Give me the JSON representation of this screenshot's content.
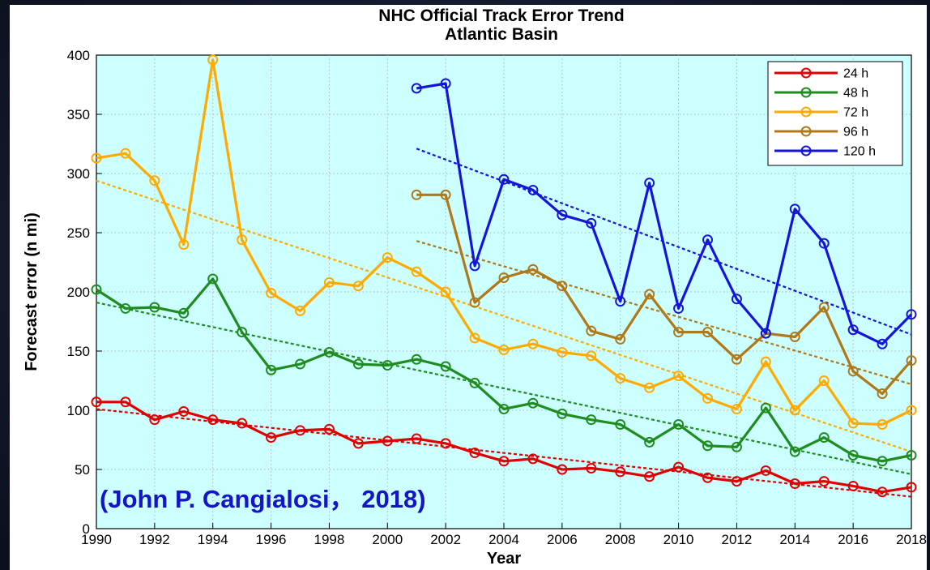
{
  "chart_data": {
    "type": "line",
    "title": "NHC Official Track Error Trend",
    "subtitle": "Atlantic Basin",
    "xlabel": "Year",
    "ylabel": "Forecast error (n mi)",
    "xlim": [
      1990,
      2018
    ],
    "ylim": [
      0,
      400
    ],
    "xticks": [
      1990,
      1992,
      1994,
      1996,
      1998,
      2000,
      2002,
      2004,
      2006,
      2008,
      2010,
      2012,
      2014,
      2016,
      2018
    ],
    "yticks": [
      0,
      50,
      100,
      150,
      200,
      250,
      300,
      350,
      400
    ],
    "grid": "on",
    "legend_position": "top-right",
    "background_color": "#ccffff",
    "annotation": "(John P. Cangialosi， 2018)",
    "annotation_color": "#1515c8",
    "series": [
      {
        "name": "24 h",
        "color": "#e00000",
        "x": [
          1990,
          1991,
          1992,
          1993,
          1994,
          1995,
          1996,
          1997,
          1998,
          1999,
          2000,
          2001,
          2002,
          2003,
          2004,
          2005,
          2006,
          2007,
          2008,
          2009,
          2010,
          2011,
          2012,
          2013,
          2014,
          2015,
          2016,
          2017,
          2018
        ],
        "y": [
          107,
          107,
          92,
          99,
          92,
          89,
          77,
          83,
          84,
          72,
          74,
          76,
          72,
          64,
          57,
          59,
          50,
          51,
          48,
          44,
          52,
          43,
          40,
          49,
          38,
          40,
          36,
          31,
          35
        ],
        "trend": [
          101,
          27
        ]
      },
      {
        "name": "48 h",
        "color": "#1e8c1e",
        "x": [
          1990,
          1991,
          1992,
          1993,
          1994,
          1995,
          1996,
          1997,
          1998,
          1999,
          2000,
          2001,
          2002,
          2003,
          2004,
          2005,
          2006,
          2007,
          2008,
          2009,
          2010,
          2011,
          2012,
          2013,
          2014,
          2015,
          2016,
          2017,
          2018
        ],
        "y": [
          202,
          186,
          187,
          182,
          211,
          166,
          134,
          139,
          149,
          139,
          138,
          143,
          137,
          123,
          101,
          106,
          97,
          92,
          88,
          73,
          88,
          70,
          69,
          102,
          65,
          77,
          62,
          57,
          62
        ],
        "trend": [
          191,
          46
        ]
      },
      {
        "name": "72 h",
        "color": "#ffaa00",
        "x": [
          1990,
          1991,
          1992,
          1993,
          1994,
          1995,
          1996,
          1997,
          1998,
          1999,
          2000,
          2001,
          2002,
          2003,
          2004,
          2005,
          2006,
          2007,
          2008,
          2009,
          2010,
          2011,
          2012,
          2013,
          2014,
          2015,
          2016,
          2017,
          2018
        ],
        "y": [
          313,
          317,
          294,
          240,
          396,
          244,
          199,
          184,
          208,
          205,
          229,
          217,
          200,
          161,
          151,
          156,
          149,
          146,
          127,
          119,
          129,
          110,
          101,
          141,
          100,
          125,
          89,
          88,
          100
        ],
        "trend": [
          294,
          65
        ]
      },
      {
        "name": "96 h",
        "color": "#b07818",
        "x": [
          2001,
          2002,
          2003,
          2004,
          2005,
          2006,
          2007,
          2008,
          2009,
          2010,
          2011,
          2012,
          2013,
          2014,
          2015,
          2016,
          2017,
          2018
        ],
        "y": [
          282,
          282,
          191,
          212,
          219,
          205,
          167,
          160,
          198,
          166,
          166,
          143,
          165,
          162,
          187,
          133,
          114,
          142
        ],
        "trend": [
          243,
          122
        ],
        "trend_range": [
          2001,
          2018
        ]
      },
      {
        "name": "120 h",
        "color": "#1515d8",
        "x": [
          2001,
          2002,
          2003,
          2004,
          2005,
          2006,
          2007,
          2008,
          2009,
          2010,
          2011,
          2012,
          2013,
          2014,
          2015,
          2016,
          2017,
          2018
        ],
        "y": [
          372,
          376,
          222,
          295,
          286,
          265,
          258,
          192,
          292,
          186,
          244,
          194,
          165,
          270,
          241,
          168,
          156,
          181
        ],
        "trend": [
          321,
          164
        ],
        "trend_range": [
          2001,
          2018
        ]
      }
    ]
  }
}
